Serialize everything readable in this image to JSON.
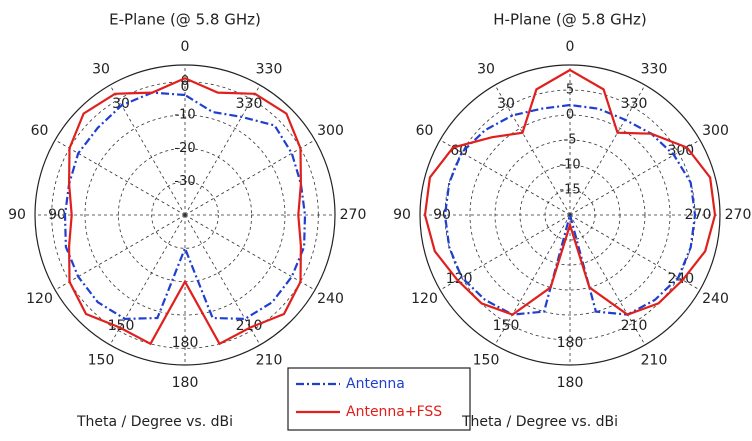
{
  "chart_data": [
    {
      "type": "polar",
      "title": "E-Plane (@ 5.8 GHz)",
      "footer": "Theta / Degree vs. dBi",
      "theta": [
        0,
        15,
        30,
        45,
        60,
        75,
        90,
        105,
        120,
        135,
        150,
        165,
        180,
        195,
        210,
        225,
        240,
        255,
        270,
        285,
        300,
        315,
        330,
        345
      ],
      "thetaticks": [
        0,
        30,
        60,
        90,
        120,
        150,
        180,
        210,
        240,
        270,
        300,
        330
      ],
      "inner_theta_labels": [
        0,
        30,
        330,
        90,
        150,
        180,
        210
      ],
      "rlim": [
        -40,
        5
      ],
      "rticks": [
        0,
        -10,
        -20,
        -30
      ],
      "grid": true,
      "series": [
        {
          "name": "Antenna",
          "color": "#1f3fd0",
          "linestyle": "dashdot",
          "values": [
            -4,
            -2,
            -2,
            -3,
            -3,
            -4,
            -4,
            -3,
            -3,
            -3,
            -4,
            -8,
            -30,
            -8,
            -4,
            -3,
            -3,
            -3,
            -4,
            -4,
            -3,
            -2,
            -6,
            -8
          ]
        },
        {
          "name": "Antenna+FSS",
          "color": "#e0201c",
          "linestyle": "solid",
          "values": [
            1,
            -2,
            2,
            3,
            0,
            -4,
            -6,
            -4,
            0,
            2,
            -1,
            0,
            -20,
            0,
            -1,
            2,
            0,
            -4,
            -6,
            -4,
            0,
            3,
            2,
            -2
          ]
        }
      ]
    },
    {
      "type": "polar",
      "title": "H-Plane (@ 5.8 GHz)",
      "footer": "Theta / Degree vs. dBi",
      "theta": [
        0,
        15,
        30,
        45,
        60,
        75,
        90,
        105,
        120,
        135,
        150,
        165,
        180,
        195,
        210,
        225,
        240,
        255,
        270,
        285,
        300,
        315,
        330,
        345
      ],
      "thetaticks": [
        0,
        30,
        60,
        90,
        120,
        150,
        180,
        210,
        240,
        270,
        300,
        330
      ],
      "inner_theta_labels": [
        30,
        330,
        60,
        300,
        90,
        270,
        120,
        240,
        150,
        180,
        210
      ],
      "rlim": [
        -20,
        10
      ],
      "rticks": [
        5,
        0,
        -5,
        -10,
        -15
      ],
      "grid": true,
      "series": [
        {
          "name": "Antenna",
          "color": "#1f3fd0",
          "linestyle": "dashdot",
          "values": [
            2,
            2,
            3,
            4,
            5,
            5,
            5,
            5,
            5,
            4,
            3,
            0,
            -20,
            0,
            3,
            4,
            5,
            5,
            5,
            5,
            4,
            3,
            2,
            2
          ]
        },
        {
          "name": "Antenna+FSS",
          "color": "#e0201c",
          "linestyle": "solid",
          "values": [
            9,
            6,
            -1,
            2,
            7,
            9,
            9,
            8,
            6,
            5,
            3,
            -5,
            -18,
            -5,
            3,
            5,
            6,
            8,
            9,
            9,
            7,
            3,
            -1,
            6
          ]
        }
      ]
    }
  ]
}
